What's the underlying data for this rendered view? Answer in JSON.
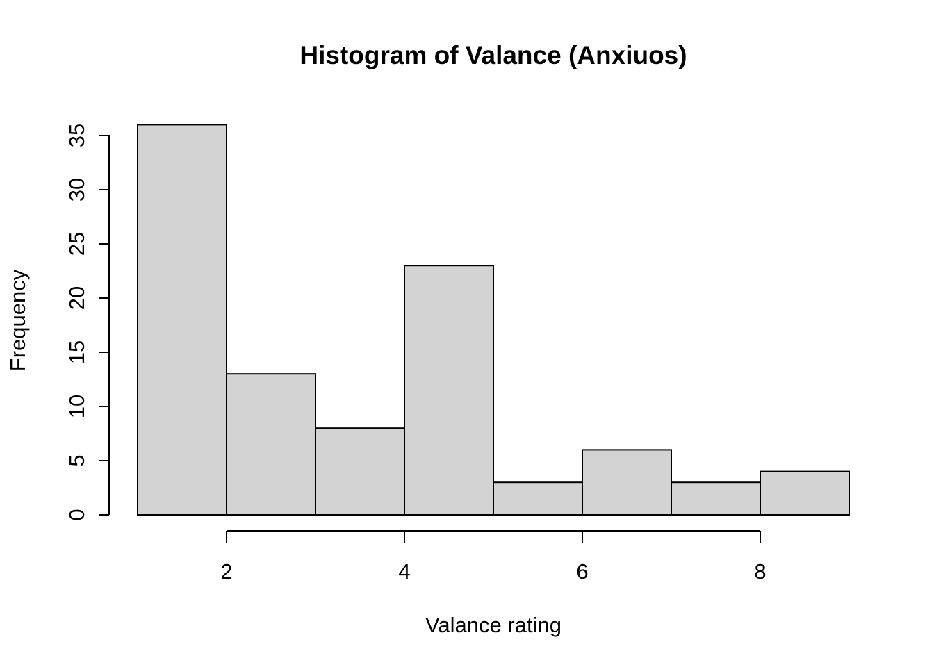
{
  "chart_data": {
    "type": "bar",
    "subtype": "histogram",
    "title": "Histogram of Valance (Anxiuos)",
    "xlabel": "Valance rating",
    "ylabel": "Frequency",
    "bins": [
      {
        "start": 1,
        "end": 2,
        "value": 36
      },
      {
        "start": 2,
        "end": 3,
        "value": 13
      },
      {
        "start": 3,
        "end": 4,
        "value": 8
      },
      {
        "start": 4,
        "end": 5,
        "value": 23
      },
      {
        "start": 5,
        "end": 6,
        "value": 3
      },
      {
        "start": 6,
        "end": 7,
        "value": 6
      },
      {
        "start": 7,
        "end": 8,
        "value": 3
      },
      {
        "start": 8,
        "end": 9,
        "value": 4
      }
    ],
    "x_ticks": [
      2,
      4,
      6,
      8
    ],
    "y_ticks": [
      0,
      5,
      10,
      15,
      20,
      25,
      30,
      35
    ],
    "xlim": [
      1,
      9
    ],
    "ylim": [
      0,
      36
    ],
    "grid": false,
    "bar_color": "#d3d3d3",
    "edge_color": "#000000"
  }
}
